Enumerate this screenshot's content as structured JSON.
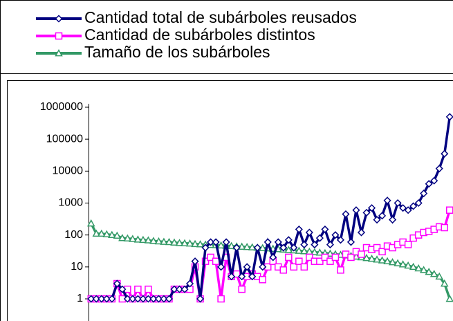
{
  "chart_data": {
    "type": "line",
    "log_scale": true,
    "legend": "top",
    "grid": false,
    "categories": [
      null,
      null,
      null,
      null,
      null,
      null,
      null,
      null,
      null,
      null,
      null,
      null,
      null,
      null,
      null,
      null,
      null,
      null,
      null,
      null,
      null,
      null,
      null,
      null,
      null,
      null,
      null,
      null,
      null,
      null,
      null,
      null,
      null,
      null,
      null,
      null,
      null,
      null,
      null,
      null,
      null,
      null,
      null,
      null,
      null,
      null,
      null,
      null,
      null,
      null,
      null,
      null,
      null,
      null,
      null,
      null,
      null,
      null,
      null,
      null,
      null,
      null,
      null,
      null,
      null,
      null,
      null,
      null,
      null,
      null
    ],
    "ylim": [
      1,
      1000000
    ],
    "yticks": [
      1,
      10,
      100,
      1000,
      10000,
      100000,
      1000000
    ],
    "series": [
      {
        "name": "Cantidad total de subárboles reusados",
        "color": "#000080",
        "marker": "diamond",
        "values": [
          1,
          1,
          1,
          1,
          1,
          3,
          2,
          1,
          1,
          1,
          1,
          1,
          1,
          1,
          1,
          1,
          2,
          2,
          2,
          3,
          15,
          1,
          40,
          60,
          60,
          10,
          60,
          5,
          40,
          5,
          10,
          5,
          40,
          10,
          60,
          20,
          60,
          40,
          70,
          40,
          150,
          50,
          120,
          50,
          80,
          150,
          50,
          100,
          70,
          450,
          60,
          600,
          120,
          500,
          700,
          300,
          400,
          1200,
          300,
          1000,
          700,
          600,
          800,
          1000,
          2000,
          4000,
          5000,
          12000,
          35000,
          500000
        ]
      },
      {
        "name": "Cantidad de subárboles distintos",
        "color": "#ff00ff",
        "marker": "square",
        "values": [
          1,
          1,
          1,
          1,
          1,
          3,
          1,
          2,
          1,
          2,
          1,
          2,
          1,
          1,
          1,
          1,
          2,
          2,
          2,
          2,
          10,
          1,
          15,
          20,
          15,
          1,
          20,
          5,
          6,
          2,
          5,
          6,
          5,
          4,
          10,
          15,
          10,
          8,
          20,
          10,
          15,
          10,
          20,
          15,
          15,
          20,
          15,
          20,
          8,
          25,
          20,
          30,
          25,
          40,
          35,
          40,
          30,
          45,
          40,
          50,
          60,
          50,
          80,
          100,
          120,
          130,
          150,
          180,
          170,
          600
        ]
      },
      {
        "name": "Tamaño de los subárboles",
        "color": "#339966",
        "marker": "triangle",
        "values": [
          230,
          110,
          110,
          105,
          100,
          95,
          80,
          78,
          75,
          72,
          70,
          68,
          65,
          63,
          61,
          60,
          58,
          56,
          55,
          54,
          52,
          51,
          50,
          49,
          48,
          47,
          46,
          45,
          44,
          43,
          42,
          41,
          40,
          39,
          38,
          37,
          36,
          35,
          34,
          33,
          32,
          31,
          30,
          29,
          28,
          27,
          26,
          25,
          24,
          23,
          22,
          21,
          20,
          19,
          18,
          17,
          16,
          15,
          14,
          13,
          12,
          11,
          10,
          9,
          8,
          7,
          6,
          5,
          3,
          1
        ]
      }
    ]
  }
}
